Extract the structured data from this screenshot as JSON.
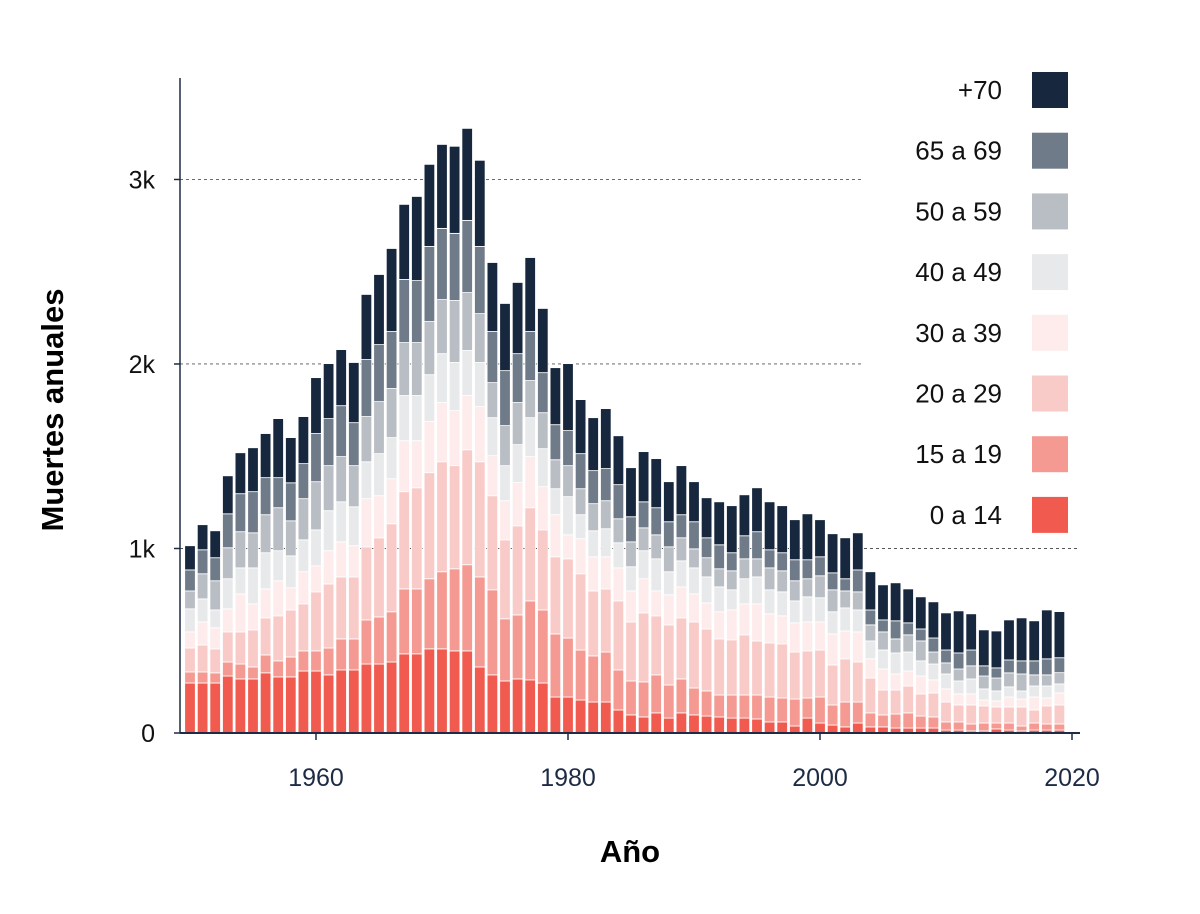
{
  "chart_data": {
    "type": "bar",
    "stacked": true,
    "xlabel": "Año",
    "ylabel": "Muertes anuales",
    "x": [
      1950,
      1951,
      1952,
      1953,
      1954,
      1955,
      1956,
      1957,
      1958,
      1959,
      1960,
      1961,
      1962,
      1963,
      1964,
      1965,
      1966,
      1967,
      1968,
      1969,
      1970,
      1971,
      1972,
      1973,
      1974,
      1975,
      1976,
      1977,
      1978,
      1979,
      1980,
      1981,
      1982,
      1983,
      1984,
      1985,
      1986,
      1987,
      1988,
      1989,
      1990,
      1991,
      1992,
      1993,
      1994,
      1995,
      1996,
      1997,
      1998,
      1999,
      2000,
      2001,
      2002,
      2003,
      2004,
      2005,
      2006,
      2007,
      2008,
      2009,
      2010,
      2011,
      2012,
      2013,
      2014,
      2015,
      2016,
      2017,
      2018,
      2019
    ],
    "xlim": [
      1949,
      2020
    ],
    "xticks": [
      1960,
      1980,
      2000,
      2020
    ],
    "xtick_labels": [
      "1960",
      "1980",
      "2000",
      "2020"
    ],
    "ylim": [
      0,
      3550
    ],
    "yticks": [
      0,
      1000,
      2000,
      3000
    ],
    "ytick_labels": [
      "0",
      "1k",
      "2k",
      "3k"
    ],
    "grid": "horizontal dashed at 1k, 2k, 3k",
    "legend_position": "right",
    "series": [
      {
        "name": "0 a 14",
        "color": "#f05a4f",
        "values": [
          271,
          271,
          271,
          309,
          293,
          293,
          326,
          304,
          304,
          336,
          336,
          315,
          342,
          342,
          374,
          374,
          385,
          429,
          429,
          456,
          456,
          445,
          445,
          358,
          315,
          282,
          293,
          288,
          271,
          195,
          195,
          179,
          168,
          168,
          125,
          98,
          87,
          109,
          81,
          109,
          98,
          92,
          87,
          81,
          81,
          76,
          60,
          60,
          38,
          81,
          54,
          43,
          33,
          54,
          33,
          33,
          27,
          27,
          27,
          27,
          16,
          16,
          11,
          11,
          22,
          16,
          11,
          16,
          16,
          16
        ]
      },
      {
        "name": "15 a 19",
        "color": "#f59a92",
        "values": [
          60,
          60,
          55,
          76,
          81,
          65,
          97,
          87,
          108,
          109,
          109,
          146,
          168,
          168,
          239,
          255,
          272,
          352,
          352,
          380,
          418,
          445,
          467,
          488,
          461,
          337,
          347,
          428,
          396,
          342,
          320,
          271,
          250,
          271,
          217,
          184,
          190,
          206,
          179,
          184,
          146,
          136,
          119,
          125,
          125,
          130,
          135,
          130,
          146,
          109,
          141,
          109,
          135,
          114,
          76,
          65,
          76,
          82,
          65,
          60,
          44,
          44,
          38,
          43,
          32,
          38,
          27,
          38,
          33,
          33
        ]
      },
      {
        "name": "20 a 29",
        "color": "#f9cbc8",
        "values": [
          130,
          146,
          130,
          163,
          174,
          201,
          201,
          244,
          255,
          255,
          320,
          347,
          336,
          336,
          396,
          429,
          477,
          527,
          548,
          575,
          596,
          559,
          623,
          624,
          510,
          428,
          483,
          505,
          434,
          418,
          429,
          413,
          352,
          342,
          374,
          320,
          374,
          320,
          326,
          331,
          358,
          336,
          304,
          299,
          326,
          293,
          293,
          293,
          255,
          255,
          255,
          217,
          234,
          217,
          189,
          135,
          130,
          146,
          120,
          130,
          108,
          92,
          103,
          93,
          87,
          87,
          103,
          71,
          98,
          103
        ]
      },
      {
        "name": "30 a 39",
        "color": "#fdeceb",
        "values": [
          87,
          125,
          114,
          125,
          206,
          141,
          157,
          190,
          120,
          174,
          141,
          180,
          190,
          169,
          261,
          228,
          244,
          276,
          255,
          277,
          321,
          298,
          294,
          299,
          217,
          212,
          234,
          277,
          234,
          228,
          130,
          190,
          185,
          174,
          179,
          168,
          185,
          135,
          163,
          168,
          152,
          141,
          147,
          162,
          168,
          201,
          158,
          152,
          158,
          157,
          152,
          168,
          151,
          163,
          104,
          114,
          87,
          81,
          97,
          71,
          71,
          60,
          60,
          32,
          33,
          54,
          43,
          70,
          43,
          65
        ]
      },
      {
        "name": "40 a 49",
        "color": "#e8e9eb",
        "values": [
          125,
          125,
          97,
          163,
          141,
          195,
          196,
          163,
          173,
          173,
          195,
          217,
          217,
          211,
          200,
          228,
          223,
          245,
          245,
          254,
          265,
          261,
          244,
          239,
          206,
          190,
          206,
          211,
          206,
          141,
          207,
          130,
          141,
          152,
          136,
          131,
          152,
          174,
          125,
          141,
          141,
          141,
          135,
          109,
          136,
          146,
          130,
          130,
          119,
          136,
          131,
          120,
          125,
          119,
          97,
          103,
          114,
          103,
          82,
          86,
          81,
          70,
          81,
          60,
          54,
          55,
          44,
          60,
          65,
          49
        ]
      },
      {
        "name": "50 a 59",
        "color": "#b9bdc4",
        "values": [
          97,
          136,
          158,
          168,
          196,
          190,
          206,
          233,
          190,
          223,
          261,
          244,
          245,
          223,
          245,
          282,
          266,
          287,
          287,
          288,
          293,
          336,
          314,
          265,
          190,
          217,
          228,
          201,
          195,
          157,
          168,
          141,
          147,
          152,
          130,
          135,
          124,
          130,
          135,
          125,
          103,
          104,
          98,
          103,
          108,
          98,
          119,
          114,
          109,
          98,
          119,
          119,
          92,
          98,
          87,
          98,
          76,
          93,
          108,
          65,
          60,
          65,
          71,
          70,
          70,
          76,
          92,
          60,
          60,
          61
        ]
      },
      {
        "name": "65 a 69",
        "color": "#6f7b89",
        "values": [
          114,
          130,
          125,
          184,
          206,
          223,
          201,
          163,
          206,
          190,
          261,
          255,
          276,
          233,
          309,
          309,
          309,
          342,
          336,
          407,
          386,
          364,
          391,
          364,
          277,
          298,
          265,
          266,
          217,
          190,
          190,
          190,
          179,
          174,
          185,
          136,
          141,
          147,
          136,
          125,
          147,
          108,
          130,
          98,
          125,
          147,
          98,
          98,
          114,
          103,
          103,
          92,
          66,
          119,
          81,
          65,
          98,
          65,
          65,
          76,
          70,
          87,
          86,
          55,
          55,
          70,
          71,
          76,
          87,
          81
        ]
      },
      {
        "name": "+70",
        "color": "#16273e",
        "values": [
          131,
          136,
          146,
          206,
          222,
          238,
          239,
          320,
          245,
          255,
          303,
          298,
          304,
          326,
          353,
          380,
          450,
          407,
          456,
          445,
          455,
          472,
          499,
          467,
          374,
          364,
          386,
          401,
          348,
          309,
          363,
          293,
          287,
          325,
          265,
          266,
          272,
          266,
          217,
          266,
          217,
          217,
          233,
          255,
          222,
          238,
          260,
          255,
          217,
          249,
          201,
          212,
          222,
          201,
          207,
          190,
          206,
          184,
          174,
          196,
          201,
          228,
          196,
          195,
          200,
          217,
          233,
          217,
          265,
          250
        ]
      }
    ]
  }
}
